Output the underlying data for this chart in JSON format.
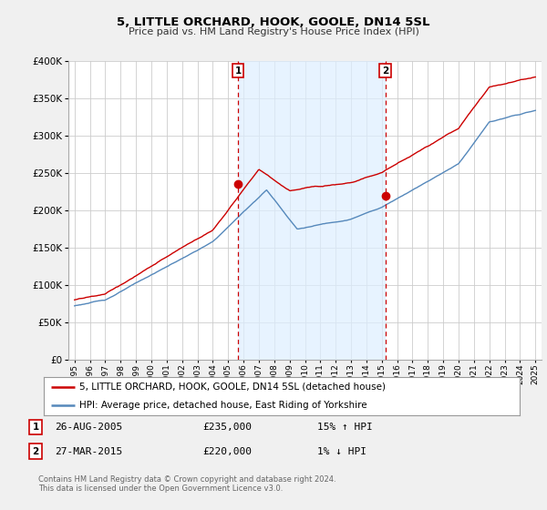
{
  "title": "5, LITTLE ORCHARD, HOOK, GOOLE, DN14 5SL",
  "subtitle": "Price paid vs. HM Land Registry's House Price Index (HPI)",
  "legend_line1": "5, LITTLE ORCHARD, HOOK, GOOLE, DN14 5SL (detached house)",
  "legend_line2": "HPI: Average price, detached house, East Riding of Yorkshire",
  "footer1": "Contains HM Land Registry data © Crown copyright and database right 2024.",
  "footer2": "This data is licensed under the Open Government Licence v3.0.",
  "sale1_date": "26-AUG-2005",
  "sale1_price": "£235,000",
  "sale1_hpi": "15% ↑ HPI",
  "sale2_date": "27-MAR-2015",
  "sale2_price": "£220,000",
  "sale2_hpi": "1% ↓ HPI",
  "sale1_year": 2005.65,
  "sale1_value": 235000,
  "sale2_year": 2015.23,
  "sale2_value": 220000,
  "ylim": [
    0,
    400000
  ],
  "xlim_left": 1994.6,
  "xlim_right": 2025.4,
  "red_color": "#cc0000",
  "blue_color": "#5588bb",
  "fill_color": "#ddeeff",
  "bg_color": "#f0f0f0",
  "plot_bg": "#ffffff",
  "grid_color": "#cccccc",
  "vline_color": "#cc0000"
}
